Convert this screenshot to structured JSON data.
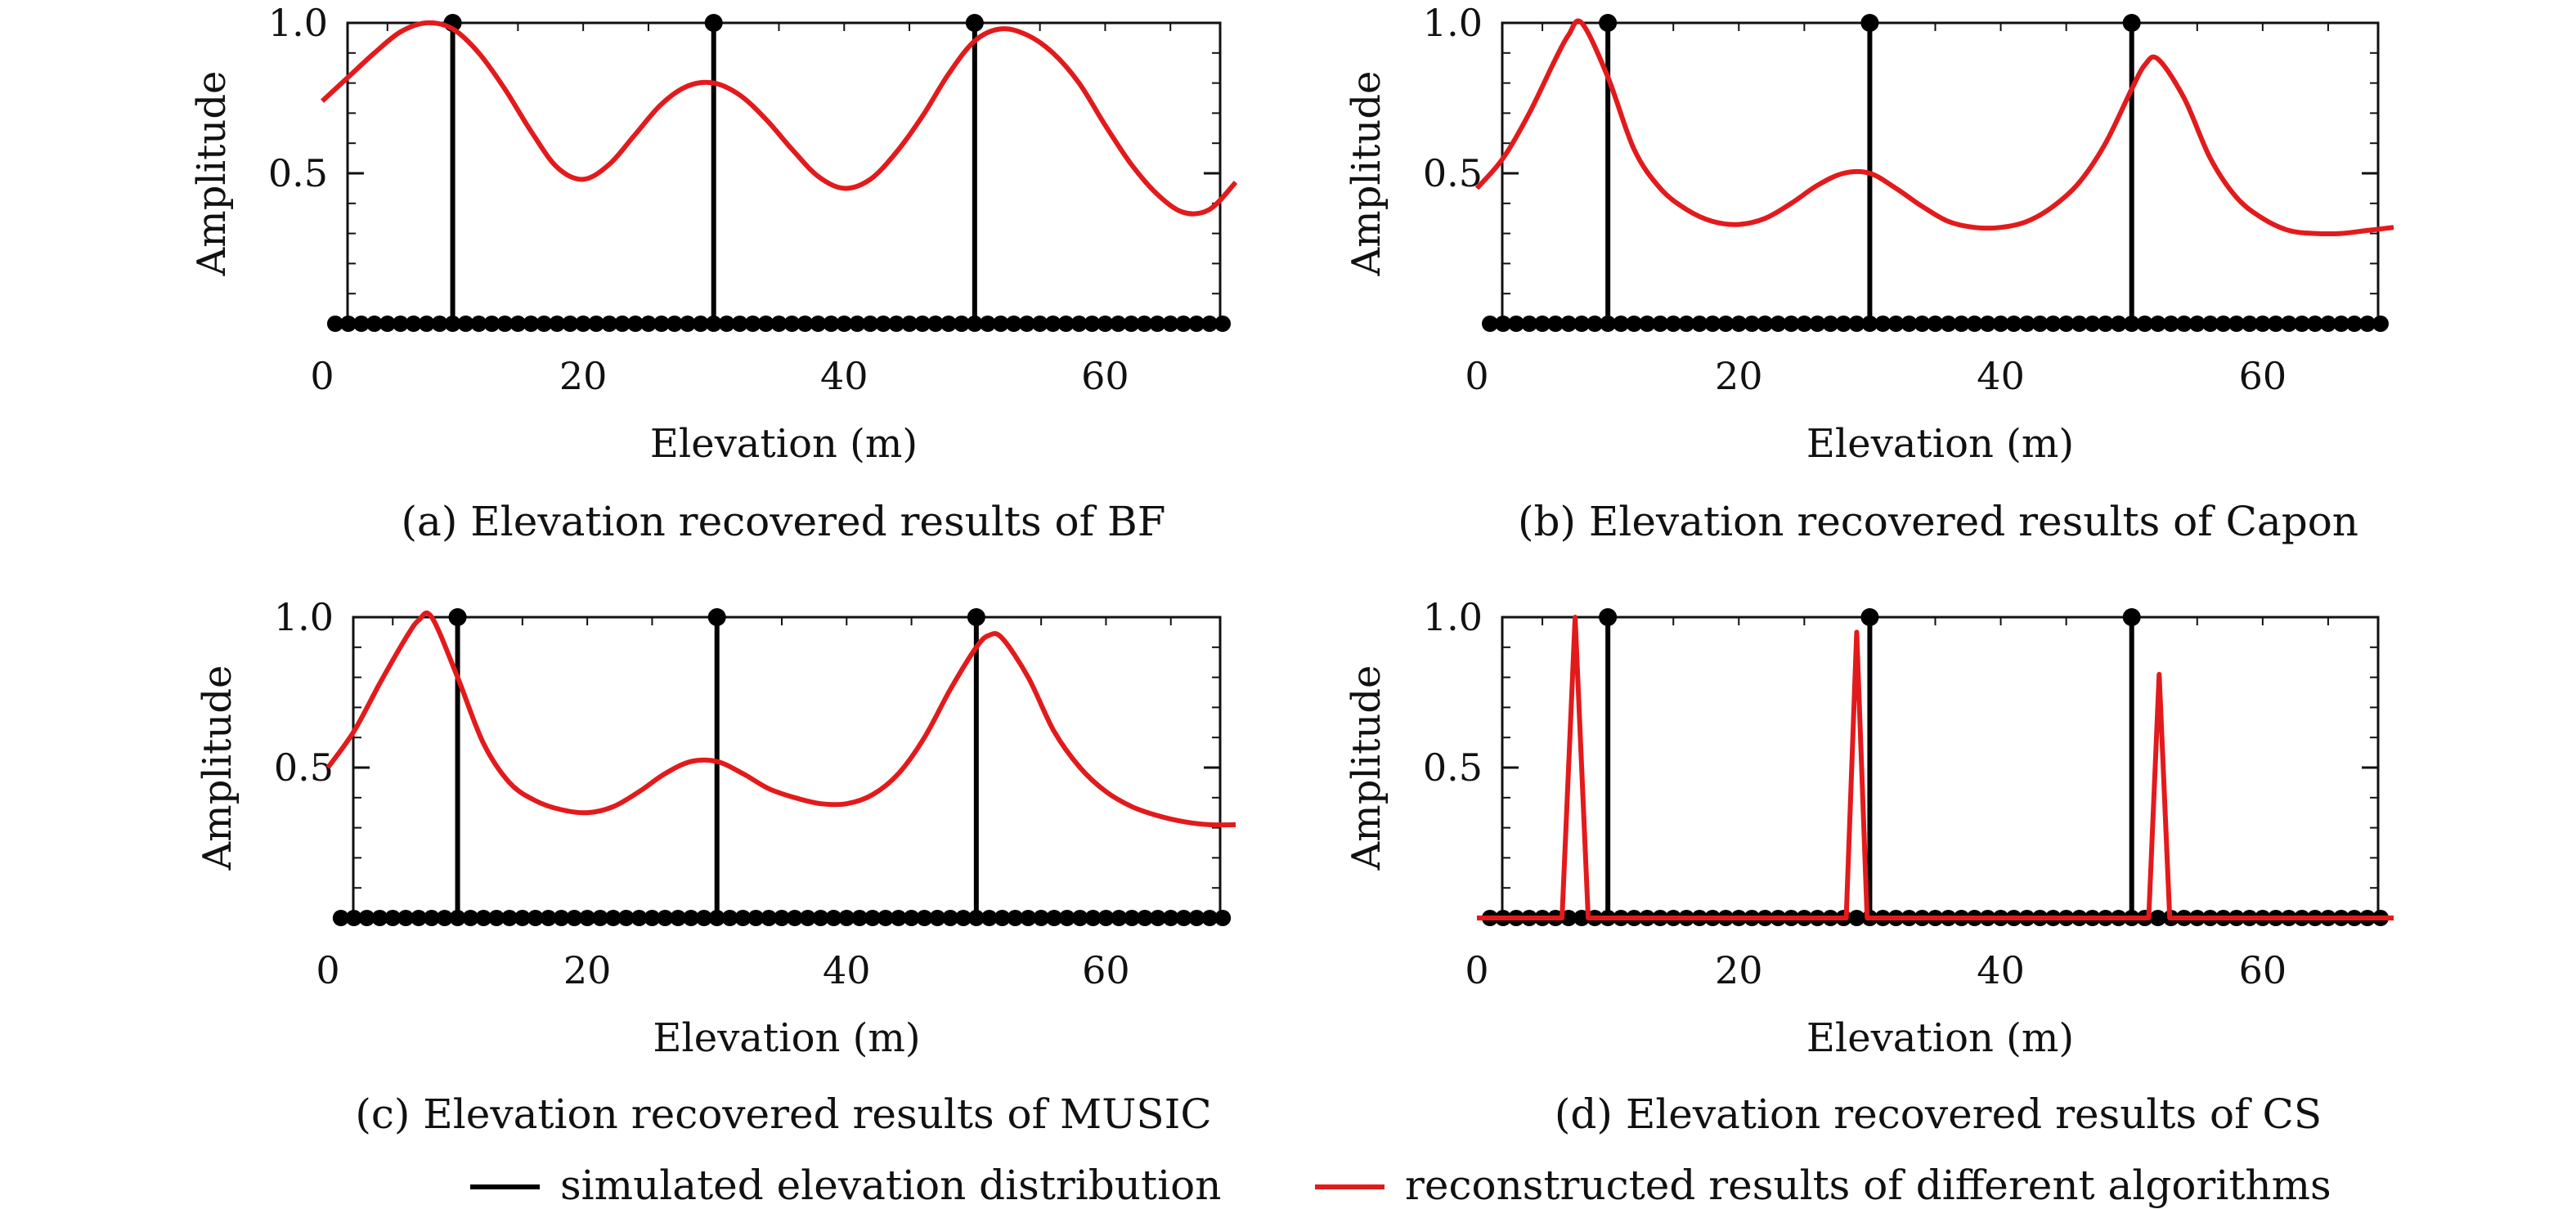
{
  "chart_data": [
    {
      "type": "line",
      "caption": "(a) Elevation recovered results of BF",
      "xlabel": "Elevation (m)",
      "ylabel": "Amplitude",
      "xlim": [
        0,
        70
      ],
      "ylim": [
        0,
        1.0
      ],
      "x_ticks": [
        "0",
        "20",
        "40",
        "60"
      ],
      "y_ticks": [
        "0.5",
        "1.0"
      ],
      "series": [
        {
          "name": "simulated elevation distribution",
          "color": "#000000",
          "kind": "stems",
          "x": [
            10,
            30,
            50
          ],
          "y": [
            1.0,
            1.0,
            1.0
          ],
          "zero_markers": "every 1 m"
        },
        {
          "name": "reconstructed results of different algorithms",
          "color": "#e31a1c",
          "kind": "line",
          "x": [
            0,
            2,
            4,
            6,
            8,
            10,
            12,
            14,
            16,
            18,
            20,
            22,
            24,
            26,
            28,
            30,
            32,
            34,
            36,
            38,
            40,
            42,
            44,
            46,
            48,
            50,
            52,
            54,
            56,
            58,
            60,
            62,
            64,
            66,
            68,
            70
          ],
          "y": [
            0.74,
            0.82,
            0.9,
            0.97,
            1.0,
            0.98,
            0.9,
            0.78,
            0.64,
            0.52,
            0.48,
            0.53,
            0.63,
            0.73,
            0.79,
            0.8,
            0.76,
            0.68,
            0.58,
            0.49,
            0.45,
            0.48,
            0.57,
            0.69,
            0.83,
            0.94,
            0.98,
            0.96,
            0.9,
            0.8,
            0.66,
            0.53,
            0.43,
            0.37,
            0.38,
            0.47
          ]
        }
      ]
    },
    {
      "type": "line",
      "caption": "(b) Elevation recovered results of Capon",
      "xlabel": "Elevation (m)",
      "ylabel": "Amplitude",
      "xlim": [
        0,
        70
      ],
      "ylim": [
        0,
        1.0
      ],
      "x_ticks": [
        "0",
        "20",
        "40",
        "60"
      ],
      "y_ticks": [
        "0.5",
        "1.0"
      ],
      "series": [
        {
          "name": "simulated elevation distribution",
          "color": "#000000",
          "kind": "stems",
          "x": [
            10,
            30,
            50
          ],
          "y": [
            1.0,
            1.0,
            1.0
          ],
          "zero_markers": "every 1 m"
        },
        {
          "name": "reconstructed results of different algorithms",
          "color": "#e31a1c",
          "kind": "line",
          "x": [
            0,
            2,
            4,
            6,
            7,
            8,
            10,
            12,
            14,
            16,
            18,
            20,
            22,
            24,
            26,
            28,
            30,
            32,
            34,
            36,
            38,
            40,
            42,
            44,
            46,
            48,
            50,
            51,
            52,
            54,
            56,
            58,
            60,
            62,
            64,
            66,
            68,
            70
          ],
          "y": [
            0.45,
            0.55,
            0.7,
            0.88,
            0.96,
            1.0,
            0.82,
            0.58,
            0.45,
            0.38,
            0.34,
            0.33,
            0.35,
            0.4,
            0.46,
            0.5,
            0.5,
            0.45,
            0.39,
            0.34,
            0.32,
            0.32,
            0.34,
            0.39,
            0.47,
            0.6,
            0.78,
            0.86,
            0.88,
            0.75,
            0.55,
            0.42,
            0.35,
            0.31,
            0.3,
            0.3,
            0.31,
            0.32
          ]
        }
      ]
    },
    {
      "type": "line",
      "caption": "(c) Elevation recovered results of MUSIC",
      "xlabel": "Elevation (m)",
      "ylabel": "Amplitude",
      "xlim": [
        0,
        70
      ],
      "ylim": [
        0,
        1.0
      ],
      "x_ticks": [
        "0",
        "20",
        "40",
        "60"
      ],
      "y_ticks": [
        "0.5",
        "1.0"
      ],
      "series": [
        {
          "name": "simulated elevation distribution",
          "color": "#000000",
          "kind": "stems",
          "x": [
            10,
            30,
            50
          ],
          "y": [
            1.0,
            1.0,
            1.0
          ],
          "zero_markers": "every 1 m"
        },
        {
          "name": "reconstructed results of different algorithms",
          "color": "#e31a1c",
          "kind": "line",
          "x": [
            0,
            2,
            4,
            6,
            7,
            8,
            10,
            12,
            14,
            16,
            18,
            20,
            22,
            24,
            26,
            28,
            30,
            32,
            34,
            36,
            38,
            40,
            42,
            44,
            46,
            48,
            50,
            51,
            52,
            54,
            56,
            58,
            60,
            62,
            64,
            66,
            68,
            70
          ],
          "y": [
            0.5,
            0.62,
            0.78,
            0.93,
            0.99,
            1.0,
            0.8,
            0.58,
            0.45,
            0.39,
            0.36,
            0.35,
            0.37,
            0.42,
            0.48,
            0.52,
            0.52,
            0.48,
            0.43,
            0.4,
            0.38,
            0.38,
            0.41,
            0.48,
            0.6,
            0.76,
            0.9,
            0.94,
            0.93,
            0.8,
            0.62,
            0.5,
            0.42,
            0.37,
            0.34,
            0.32,
            0.31,
            0.31
          ]
        }
      ]
    },
    {
      "type": "line",
      "caption": "(d) Elevation recovered results of CS",
      "xlabel": "Elevation (m)",
      "ylabel": "Amplitude",
      "xlim": [
        0,
        70
      ],
      "ylim": [
        0,
        1.0
      ],
      "x_ticks": [
        "0",
        "20",
        "40",
        "60"
      ],
      "y_ticks": [
        "0.5",
        "1.0"
      ],
      "series": [
        {
          "name": "simulated elevation distribution",
          "color": "#000000",
          "kind": "stems",
          "x": [
            10,
            30,
            50
          ],
          "y": [
            1.0,
            1.0,
            1.0
          ],
          "zero_markers": "every 1 m"
        },
        {
          "name": "reconstructed results of different algorithms",
          "color": "#e31a1c",
          "kind": "line",
          "x": [
            0,
            6.5,
            7.5,
            8.5,
            28.2,
            29,
            29.8,
            51.3,
            52.1,
            52.9,
            70
          ],
          "y": [
            0,
            0,
            1.0,
            0,
            0,
            0.95,
            0,
            0,
            0.81,
            0,
            0
          ]
        }
      ]
    }
  ],
  "legend": {
    "items": [
      {
        "label": "simulated elevation distribution",
        "color": "#000000"
      },
      {
        "label": "reconstructed results of different algorithms",
        "color": "#e31a1c"
      }
    ]
  }
}
